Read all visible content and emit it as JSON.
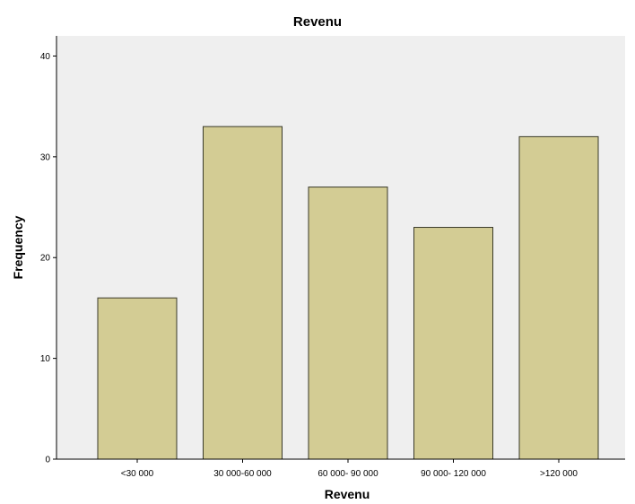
{
  "chart_data": {
    "type": "bar",
    "title": "Revenu",
    "xlabel": "Revenu",
    "ylabel": "Frequency",
    "categories": [
      "<30 000",
      "30 000-60 000",
      "60 000- 90 000",
      "90 000- 120 000",
      ">120 000"
    ],
    "values": [
      16,
      33,
      27,
      23,
      32
    ],
    "ylim": [
      0,
      42
    ],
    "yticks": [
      "0",
      "10",
      "20",
      "30",
      "40"
    ],
    "grid": false,
    "colors": {
      "bar_fill": "#d3cc94",
      "bar_stroke": "#3a3a2a",
      "plot_background": "#efefef",
      "frame": "#000000"
    }
  }
}
